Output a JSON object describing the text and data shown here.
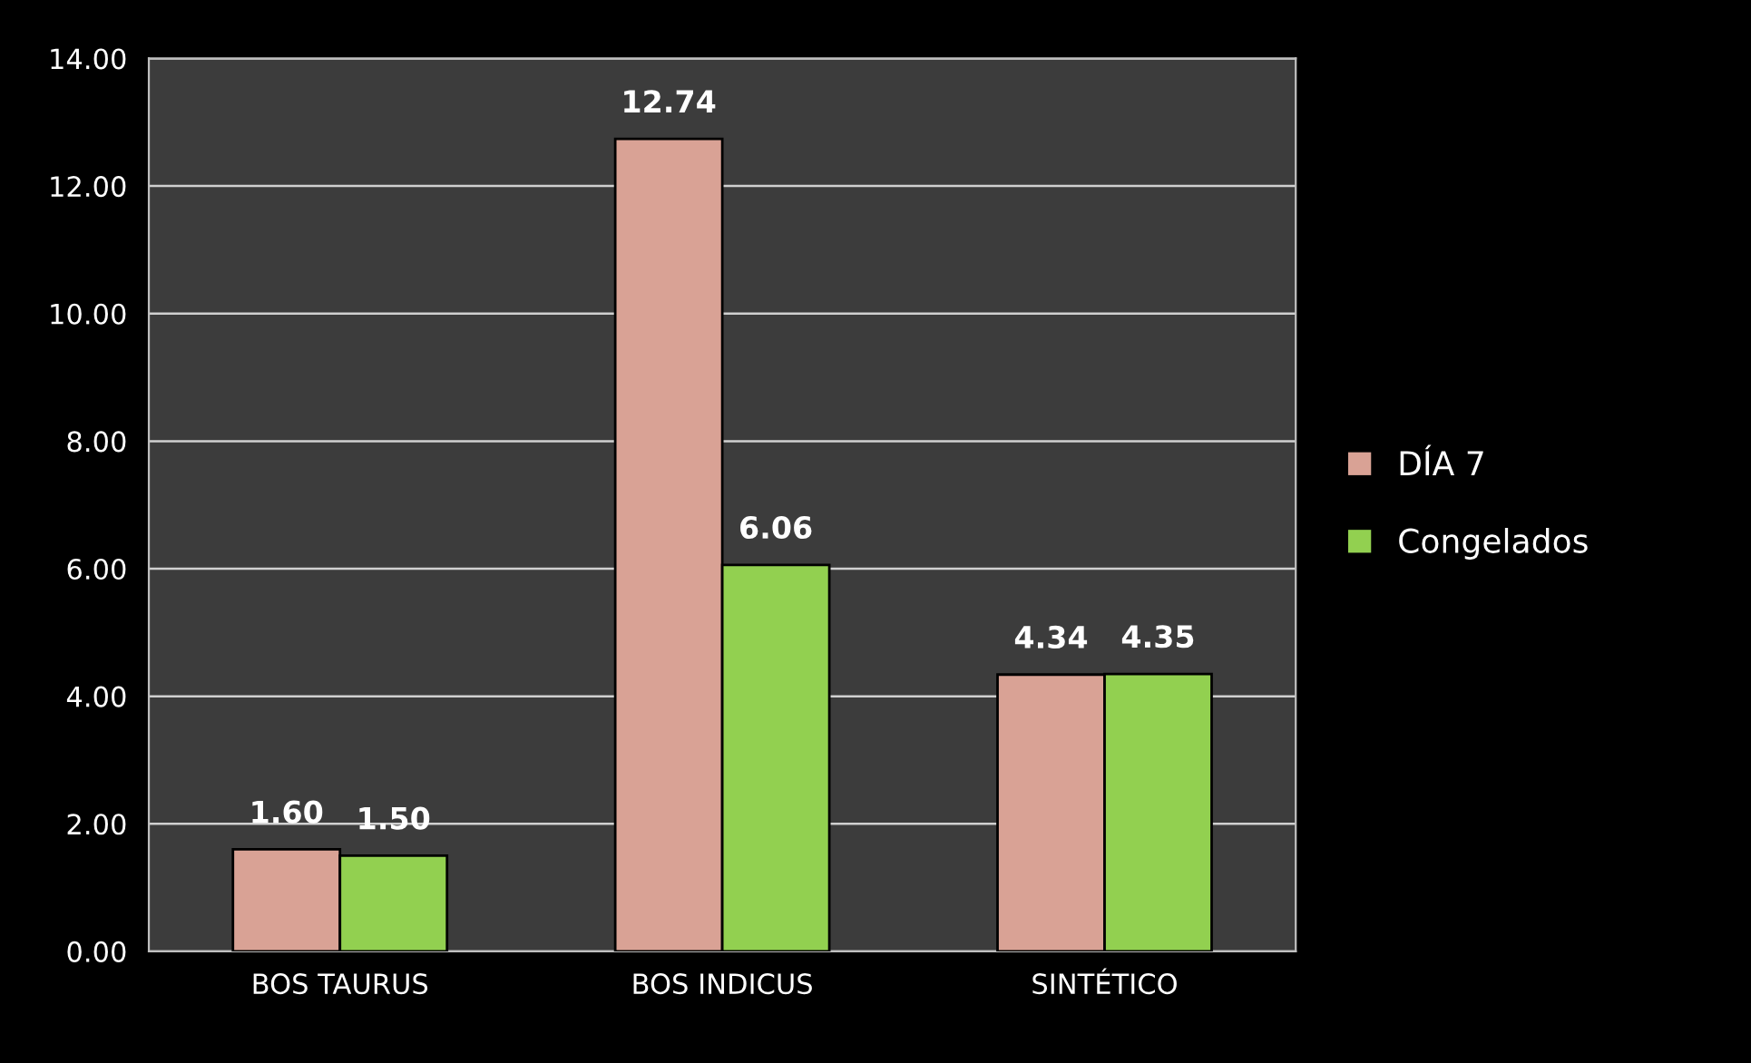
{
  "chart_data": {
    "type": "bar",
    "categories": [
      "BOS TAURUS",
      "BOS INDICUS",
      "SINTÉTICO"
    ],
    "series": [
      {
        "name": "DÍA 7",
        "color": "#d9a295",
        "values": [
          1.6,
          12.74,
          4.34
        ],
        "value_labels": [
          "1.60",
          "12.74",
          "4.34"
        ]
      },
      {
        "name": "Congelados",
        "color": "#92d050",
        "values": [
          1.5,
          6.06,
          4.35
        ],
        "value_labels": [
          "1.50",
          "6.06",
          "4.35"
        ]
      }
    ],
    "ylim": [
      0,
      14
    ],
    "yticks": [
      {
        "value": 0,
        "label": "0.00"
      },
      {
        "value": 2,
        "label": "2.00"
      },
      {
        "value": 4,
        "label": "4.00"
      },
      {
        "value": 6,
        "label": "6.00"
      },
      {
        "value": 8,
        "label": "8.00"
      },
      {
        "value": 10,
        "label": "10.00"
      },
      {
        "value": 12,
        "label": "12.00"
      },
      {
        "value": 14,
        "label": "14.00"
      }
    ],
    "grid": "y",
    "legend": "right"
  }
}
